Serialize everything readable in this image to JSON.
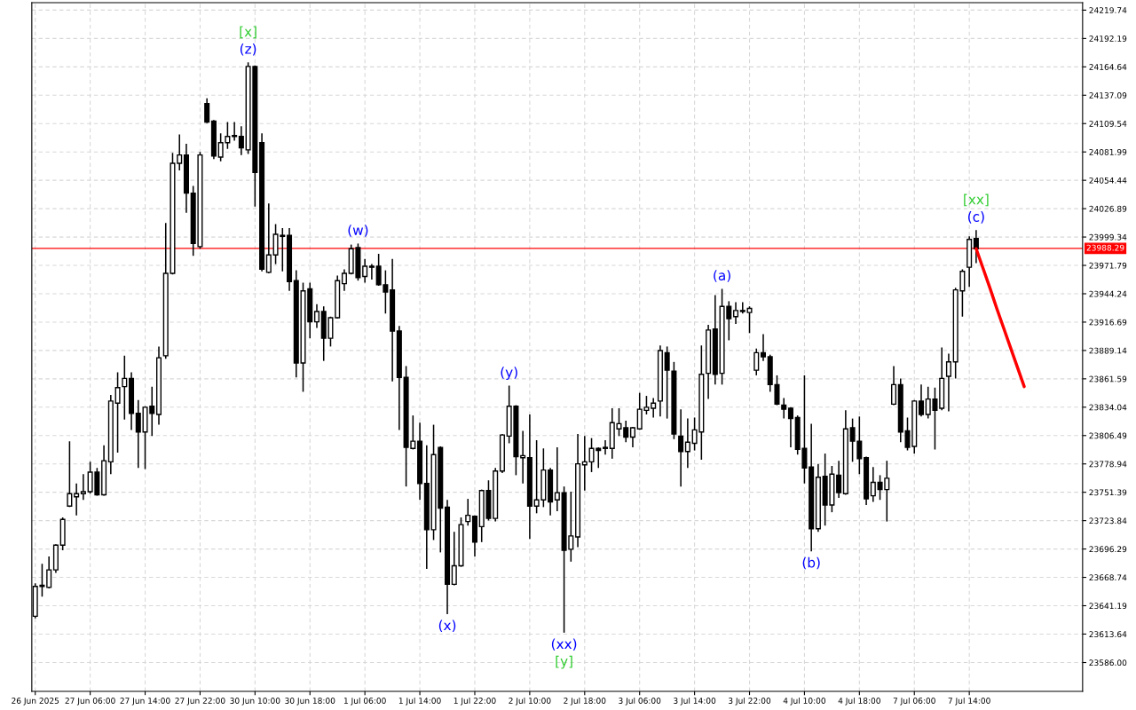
{
  "chart_data": {
    "type": "candlestick",
    "categories": [
      "26 Jun 2025",
      null,
      null,
      null,
      null,
      null,
      null,
      null,
      "27 Jun 06:00",
      null,
      null,
      null,
      null,
      null,
      null,
      null,
      "27 Jun 14:00",
      null,
      null,
      null,
      null,
      null,
      null,
      null,
      "27 Jun 22:00",
      null,
      null,
      null,
      null,
      null,
      null,
      null,
      "30 Jun 10:00",
      null,
      null,
      null,
      null,
      null,
      null,
      null,
      "30 Jun 18:00",
      null,
      null,
      null,
      null,
      null,
      null,
      null,
      "1 Jul 06:00",
      null,
      null,
      null,
      null,
      null,
      null,
      null,
      "1 Jul 14:00",
      null,
      null,
      null,
      null,
      null,
      null,
      null,
      "1 Jul 22:00",
      null,
      null,
      null,
      null,
      null,
      null,
      null,
      "2 Jul 10:00",
      null,
      null,
      null,
      null,
      null,
      null,
      null,
      "2 Jul 18:00",
      null,
      null,
      null,
      null,
      null,
      null,
      null,
      "3 Jul 06:00",
      null,
      null,
      null,
      null,
      null,
      null,
      null,
      "3 Jul 14:00",
      null,
      null,
      null,
      null,
      null,
      null,
      null,
      "3 Jul 22:00",
      null,
      null,
      null,
      null,
      null,
      null,
      null,
      "4 Jul 10:00",
      null,
      null,
      null,
      null,
      null,
      null,
      null,
      "4 Jul 18:00",
      null,
      null,
      null,
      null,
      null,
      null,
      null,
      "7 Jul 06:00",
      null,
      null,
      null,
      null,
      null,
      null,
      null,
      "7 Jul 14:00",
      null,
      null,
      null,
      null,
      null,
      null,
      null,
      null,
      null,
      null,
      null,
      null,
      null,
      null,
      null,
      null
    ],
    "ohlc": [
      [
        23631,
        23663,
        23629,
        23660
      ],
      [
        23661,
        23682,
        23650,
        23660
      ],
      [
        23659,
        23689,
        23658,
        23676
      ],
      [
        23676,
        23701,
        23673,
        23700
      ],
      [
        23700,
        23727,
        23695,
        23725
      ],
      [
        23738,
        23801,
        23737,
        23750
      ],
      [
        23747,
        23760,
        23729,
        23750
      ],
      [
        23750,
        23769,
        23744,
        23752
      ],
      [
        23752,
        23781,
        23750,
        23771
      ],
      [
        23771,
        23775,
        23748,
        23749
      ],
      [
        23749,
        23797,
        23748,
        23782
      ],
      [
        23781,
        23846,
        23769,
        23840
      ],
      [
        23838,
        23868,
        23790,
        23853
      ],
      [
        23854,
        23884,
        23822,
        23862
      ],
      [
        23862,
        23868,
        23812,
        23828
      ],
      [
        23828,
        23841,
        23775,
        23810
      ],
      [
        23810,
        23835,
        23774,
        23834
      ],
      [
        23835,
        23854,
        23806,
        23828
      ],
      [
        23827,
        23893,
        23817,
        23882
      ],
      [
        23884,
        24013,
        23881,
        23964
      ],
      [
        23964,
        24081,
        23963,
        24071
      ],
      [
        24071,
        24099,
        24064,
        24079
      ],
      [
        24079,
        24090,
        24023,
        24042
      ],
      [
        24042,
        24049,
        23981,
        23993
      ],
      [
        23990,
        24082,
        23988,
        24079
      ],
      [
        24129,
        24134,
        24110,
        24111
      ],
      [
        24112,
        24113,
        24075,
        24078
      ],
      [
        24077,
        24100,
        24073,
        24091
      ],
      [
        24091,
        24111,
        24085,
        24097
      ],
      [
        24097,
        24111,
        24093,
        24098
      ],
      [
        24097,
        24107,
        24079,
        24086
      ],
      [
        24084,
        24169,
        24080,
        24165
      ],
      [
        24165,
        24166,
        24029,
        24062
      ],
      [
        24091,
        24100,
        23966,
        23968
      ],
      [
        23965,
        24032,
        23964,
        23982
      ],
      [
        23982,
        24012,
        23973,
        24002
      ],
      [
        24001,
        24008,
        23966,
        24000
      ],
      [
        24001,
        24008,
        23947,
        23956
      ],
      [
        23957,
        23967,
        23863,
        23877
      ],
      [
        23877,
        23955,
        23849,
        23947
      ],
      [
        23949,
        23955,
        23901,
        23917
      ],
      [
        23917,
        23934,
        23911,
        23927
      ],
      [
        23927,
        23932,
        23879,
        23901
      ],
      [
        23901,
        23922,
        23893,
        23921
      ],
      [
        23921,
        23962,
        23920,
        23957
      ],
      [
        23954,
        23968,
        23947,
        23964
      ],
      [
        23964,
        23992,
        23963,
        23988
      ],
      [
        23989,
        23993,
        23957,
        23960
      ],
      [
        23961,
        23978,
        23955,
        23971
      ],
      [
        23971,
        23973,
        23958,
        23970
      ],
      [
        23971,
        23983,
        23952,
        23953
      ],
      [
        23953,
        23967,
        23925,
        23946
      ],
      [
        23948,
        23978,
        23859,
        23908
      ],
      [
        23908,
        23913,
        23812,
        23863
      ],
      [
        23863,
        23874,
        23757,
        23795
      ],
      [
        23794,
        23826,
        23793,
        23801
      ],
      [
        23801,
        23819,
        23744,
        23760
      ],
      [
        23760,
        23797,
        23677,
        23715
      ],
      [
        23715,
        23817,
        23705,
        23788
      ],
      [
        23795,
        23796,
        23693,
        23736
      ],
      [
        23737,
        23744,
        23633,
        23662
      ],
      [
        23662,
        23713,
        23661,
        23680
      ],
      [
        23680,
        23727,
        23679,
        23720
      ],
      [
        23723,
        23745,
        23719,
        23729
      ],
      [
        23728,
        23729,
        23689,
        23703
      ],
      [
        23718,
        23754,
        23703,
        23753
      ],
      [
        23753,
        23763,
        23724,
        23726
      ],
      [
        23726,
        23775,
        23723,
        23772
      ],
      [
        23772,
        23808,
        23770,
        23807
      ],
      [
        23806,
        23855,
        23799,
        23835
      ],
      [
        23835,
        23836,
        23768,
        23786
      ],
      [
        23785,
        23811,
        23760,
        23787
      ],
      [
        23785,
        23827,
        23706,
        23738
      ],
      [
        23738,
        23802,
        23731,
        23744
      ],
      [
        23744,
        23794,
        23737,
        23773
      ],
      [
        23773,
        23775,
        23729,
        23742
      ],
      [
        23744,
        23795,
        23733,
        23751
      ],
      [
        23751,
        23757,
        23615,
        23695
      ],
      [
        23696,
        23752,
        23684,
        23709
      ],
      [
        23708,
        23808,
        23698,
        23779
      ],
      [
        23778,
        23806,
        23753,
        23781
      ],
      [
        23781,
        23804,
        23771,
        23794
      ],
      [
        23794,
        23795,
        23775,
        23792
      ],
      [
        23794,
        23802,
        23788,
        23795
      ],
      [
        23794,
        23833,
        23784,
        23819
      ],
      [
        23813,
        23833,
        23806,
        23818
      ],
      [
        23814,
        23821,
        23800,
        23805
      ],
      [
        23805,
        23815,
        23795,
        23814
      ],
      [
        23813,
        23848,
        23812,
        23832
      ],
      [
        23831,
        23845,
        23827,
        23834
      ],
      [
        23833,
        23843,
        23824,
        23838
      ],
      [
        23840,
        23894,
        23825,
        23889
      ],
      [
        23887,
        23893,
        23823,
        23870
      ],
      [
        23869,
        23878,
        23803,
        23808
      ],
      [
        23806,
        23832,
        23757,
        23791
      ],
      [
        23791,
        23823,
        23775,
        23800
      ],
      [
        23799,
        23824,
        23792,
        23812
      ],
      [
        23810,
        23894,
        23783,
        23866
      ],
      [
        23867,
        23914,
        23842,
        23909
      ],
      [
        23910,
        23943,
        23856,
        23866
      ],
      [
        23867,
        23949,
        23856,
        23932
      ],
      [
        23932,
        23937,
        23899,
        23920
      ],
      [
        23922,
        23936,
        23915,
        23928
      ],
      [
        23927,
        23936,
        23925,
        23928
      ],
      [
        23926,
        23932,
        23906,
        23930
      ],
      [
        23870,
        23891,
        23865,
        23887
      ],
      [
        23887,
        23905,
        23879,
        23883
      ],
      [
        23883,
        23885,
        23849,
        23856
      ],
      [
        23856,
        23865,
        23836,
        23837
      ],
      [
        23836,
        23843,
        23823,
        23832
      ],
      [
        23833,
        23834,
        23795,
        23823
      ],
      [
        23824,
        23826,
        23788,
        23793
      ],
      [
        23794,
        23865,
        23760,
        23775
      ],
      [
        23776,
        23818,
        23694,
        23716
      ],
      [
        23716,
        23779,
        23713,
        23766
      ],
      [
        23767,
        23789,
        23719,
        23739
      ],
      [
        23739,
        23777,
        23732,
        23769
      ],
      [
        23768,
        23782,
        23746,
        23751
      ],
      [
        23750,
        23831,
        23749,
        23813
      ],
      [
        23814,
        23823,
        23781,
        23801
      ],
      [
        23801,
        23825,
        23769,
        23784
      ],
      [
        23785,
        23786,
        23739,
        23745
      ],
      [
        23748,
        23776,
        23742,
        23761
      ],
      [
        23761,
        23768,
        23744,
        23754
      ],
      [
        23754,
        23782,
        23723,
        23765
      ],
      [
        23837,
        23874,
        23836,
        23856
      ],
      [
        23856,
        23862,
        23800,
        23810
      ],
      [
        23811,
        23824,
        23792,
        23795
      ],
      [
        23796,
        23841,
        23789,
        23840
      ],
      [
        23840,
        23856,
        23825,
        23827
      ],
      [
        23827,
        23854,
        23823,
        23842
      ],
      [
        23842,
        23853,
        23793,
        23831
      ],
      [
        23833,
        23892,
        23831,
        23862
      ],
      [
        23864,
        23886,
        23830,
        23878
      ],
      [
        23878,
        23950,
        23862,
        23948
      ],
      [
        23947,
        23968,
        23922,
        23966
      ],
      [
        23970,
        24000,
        23951,
        23997
      ],
      [
        23998,
        24006,
        23974,
        23988
      ],
      null,
      null,
      null,
      null,
      null,
      null,
      null,
      null,
      null,
      null,
      null,
      null,
      null,
      null,
      null
    ],
    "series": [
      {
        "type": "line",
        "color": "#ff0000",
        "values": [
          null,
          null,
          null,
          null,
          null,
          null,
          null,
          null,
          null,
          null,
          null,
          null,
          null,
          null,
          null,
          null,
          null,
          null,
          null,
          null,
          null,
          null,
          null,
          null,
          null,
          null,
          null,
          null,
          null,
          null,
          null,
          null,
          null,
          null,
          null,
          null,
          null,
          null,
          null,
          null,
          null,
          null,
          null,
          null,
          null,
          null,
          null,
          null,
          null,
          null,
          null,
          null,
          null,
          null,
          null,
          null,
          null,
          null,
          null,
          null,
          null,
          null,
          null,
          null,
          null,
          null,
          null,
          null,
          null,
          null,
          null,
          null,
          null,
          null,
          null,
          null,
          null,
          null,
          null,
          null,
          null,
          null,
          null,
          null,
          null,
          null,
          null,
          null,
          null,
          null,
          null,
          null,
          null,
          null,
          null,
          null,
          null,
          null,
          null,
          null,
          null,
          null,
          null,
          null,
          null,
          null,
          null,
          null,
          null,
          null,
          null,
          null,
          null,
          null,
          null,
          null,
          null,
          null,
          null,
          null,
          null,
          null,
          null,
          null,
          null,
          null,
          null,
          null,
          null,
          null,
          null,
          null,
          null,
          null,
          null,
          null,
          null,
          23988,
          23969,
          23950,
          23930,
          23911,
          23892,
          23873,
          23854,
          null,
          null,
          null,
          null,
          null,
          null,
          null,
          null
        ]
      }
    ],
    "ylim": [
      23558,
      24227
    ],
    "yticks": [
      {
        "value": 23586,
        "label": "23586.00"
      },
      23613.64,
      23641.19,
      23668.74,
      23696.29,
      23723.84,
      23751.39,
      23778.94,
      23806.49,
      23834.04,
      23861.59,
      23889.14,
      23916.69,
      23944.24,
      23971.79,
      23999.34,
      24026.89,
      24054.44,
      24081.99,
      24109.54,
      24137.09,
      24164.64,
      24192.19,
      24219.74
    ],
    "ref_lines": [
      {
        "axis": "y",
        "value": 23988.29,
        "label": "23988.29",
        "color": "#ff0000"
      }
    ],
    "annotations": [
      {
        "text": "(z)",
        "y": 24169
      },
      {
        "text": "[x]",
        "y": 24169
      },
      {
        "text": "(w)",
        "y": 23993
      },
      {
        "text": "(x)",
        "y": 23633
      },
      {
        "text": "(y)",
        "y": 23855
      },
      {
        "text": "(xx)",
        "y": 23615
      },
      {
        "text": "[y]",
        "y": 23615
      },
      {
        "text": "(a)",
        "y": 23949
      },
      {
        "text": "(b)",
        "y": 23694
      },
      {
        "text": "(c)",
        "y": 24006
      },
      {
        "text": "[xx]",
        "y": 24006
      }
    ],
    "grid": true
  }
}
